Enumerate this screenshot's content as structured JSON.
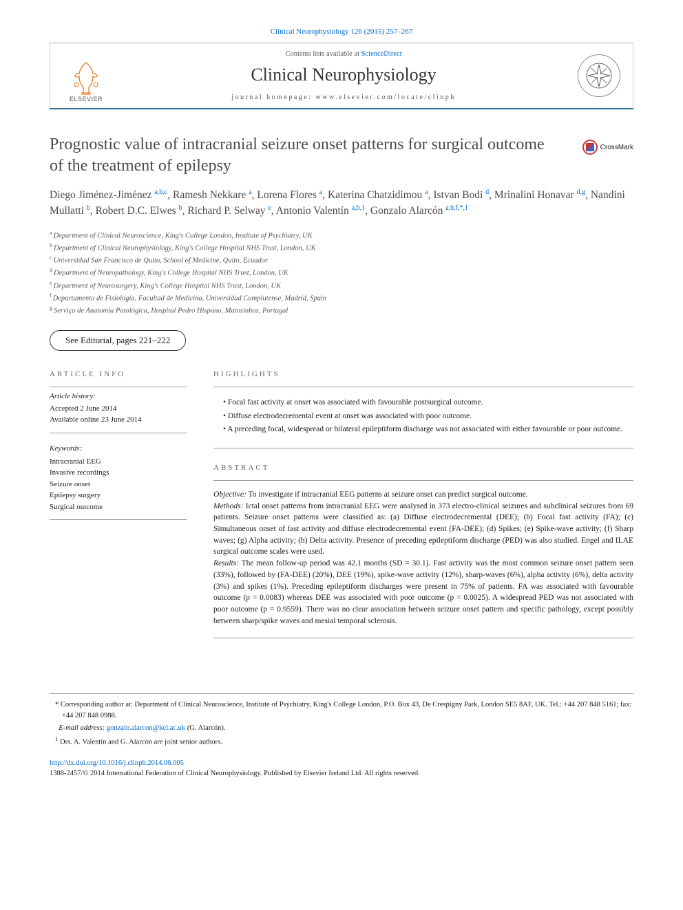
{
  "journal_ref": "Clinical Neurophysiology 126 (2015) 257–267",
  "masthead": {
    "contents_line_pre": "Contents lists available at ",
    "contents_link": "ScienceDirect",
    "journal_title": "Clinical Neurophysiology",
    "homepage_pre": "journal homepage: ",
    "homepage_url": "www.elsevier.com/locate/clinph",
    "publisher_label": "ELSEVIER"
  },
  "colors": {
    "link": "#0066cc",
    "rule": "#2a6d8e",
    "text_muted": "#555555",
    "title_gray": "#4a4a4a"
  },
  "article": {
    "title": "Prognostic value of intracranial seizure onset patterns for surgical outcome of the treatment of epilepsy",
    "crossmark_label": "CrossMark"
  },
  "authors_html": "Diego Jiménez-Jiménez <sup>a,b,c</sup>, Ramesh Nekkare <sup>a</sup>, Lorena Flores <sup>a</sup>, Katerina Chatzidimou <sup>a</sup>, Istvan Bodi <sup>d</sup>, Mrinalini Honavar <sup>d,g</sup>, Nandini Mullatti <sup>b</sup>, Robert D.C. Elwes <sup>b</sup>, Richard P. Selway <sup>e</sup>, Antonio Valentín <sup>a,b,1</sup>, Gonzalo Alarcón <sup>a,b,f,*,1</sup>",
  "affiliations": [
    {
      "key": "a",
      "text": "Department of Clinical Neuroscience, King's College London, Institute of Psychiatry, UK"
    },
    {
      "key": "b",
      "text": "Department of Clinical Neurophysiology, King's College Hospital NHS Trust, London, UK"
    },
    {
      "key": "c",
      "text": "Universidad San Francisco de Quito, School of Medicine, Quito, Ecuador"
    },
    {
      "key": "d",
      "text": "Department of Neuropathology, King's College Hospital NHS Trust, London, UK"
    },
    {
      "key": "e",
      "text": "Department of Neurosurgery, King's College Hospital NHS Trust, London, UK"
    },
    {
      "key": "f",
      "text": "Departamento de Fisiología, Facultad de Medicina, Universidad Complutense, Madrid, Spain"
    },
    {
      "key": "g",
      "text": "Serviço de Anatomia Patológica, Hospital Pedro Hispano, Matosinhos, Portugal"
    }
  ],
  "editorial_note": "See Editorial, pages 221–222",
  "left": {
    "info_head": "ARTICLE INFO",
    "history_label": "Article history:",
    "accepted": "Accepted 2 June 2014",
    "online": "Available online 23 June 2014",
    "keywords_label": "Keywords:",
    "keywords": [
      "Intracranial EEG",
      "Invasive recordings",
      "Seizure onset",
      "Epilepsy surgery",
      "Surgical outcome"
    ]
  },
  "right": {
    "highlights_head": "HIGHLIGHTS",
    "highlights": [
      "Focal fast activity at onset was associated with favourable postsurgical outcome.",
      "Diffuse electrodecremental event at onset was associated with poor outcome.",
      "A preceding focal, widespread or bilateral epileptiform discharge was not associated with either favourable or poor outcome."
    ],
    "abstract_head": "ABSTRACT",
    "abstract": {
      "objective_label": "Objective:",
      "objective": " To investigate if intracranial EEG patterns at seizure onset can predict surgical outcome.",
      "methods_label": "Methods:",
      "methods": " Ictal onset patterns from intracranial EEG were analysed in 373 electro-clinical seizures and subclinical seizures from 69 patients. Seizure onset patterns were classified as: (a) Diffuse electrodecremental (DEE); (b) Focal fast activity (FA); (c) Simultaneous onset of fast activity and diffuse electrodecremental event (FA-DEE); (d) Spikes; (e) Spike-wave activity; (f) Sharp waves; (g) Alpha activity; (h) Delta activity. Presence of preceding epileptiform discharge (PED) was also studied. Engel and ILAE surgical outcome scales were used.",
      "results_label": "Results:",
      "results": " The mean follow-up period was 42.1 months (SD = 30.1). Fast activity was the most common seizure onset pattern seen (33%), followed by (FA-DEE) (20%), DEE (19%), spike-wave activity (12%), sharp-waves (6%), alpha activity (6%), delta activity (3%) and spikes (1%). Preceding epileptiform discharges were present in 75% of patients. FA was associated with favourable outcome (p = 0.0083) whereas DEE was associated with poor outcome (p = 0.0025). A widespread PED was not associated with poor outcome (p = 0.9559). There was no clear association between seizure onset pattern and specific pathology, except possibly between sharp/spike waves and mesial temporal sclerosis."
    }
  },
  "footnotes": {
    "corr_marker": "*",
    "corr": " Corresponding author at: Department of Clinical Neuroscience, Institute of Psychiatry, King's College London, P.O. Box 43, De Crespigny Park, London SE5 8AF, UK. Tel.: +44 207 848 5161; fax: +44 207 848 0988.",
    "email_label": "E-mail address: ",
    "email": "gonzalo.alarcon@kcl.ac.uk",
    "email_suffix": " (G. Alarcón).",
    "note1_marker": "1",
    "note1": "  Drs. A. Valentín and G. Alarcón are joint senior authors.",
    "doi": "http://dx.doi.org/10.1016/j.clinph.2014.06.005",
    "copyright": "1388-2457/© 2014 International Federation of Clinical Neurophysiology. Published by Elsevier Ireland Ltd. All rights reserved."
  }
}
